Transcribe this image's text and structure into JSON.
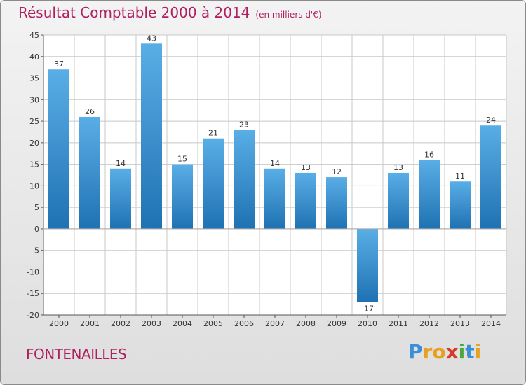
{
  "title": "Résultat Comptable 2000 à 2014",
  "subtitle": "(en milliers d'€)",
  "location": "FONTENAILLES",
  "logo_text": "Proxiti",
  "colors": {
    "title": "#b02060",
    "bar_light": "#5aaee6",
    "bar_dark": "#1f72b2",
    "grid": "#c8c8c8",
    "text": "#333333"
  },
  "chart_data": {
    "type": "bar",
    "categories": [
      "2000",
      "2001",
      "2002",
      "2003",
      "2004",
      "2005",
      "2006",
      "2007",
      "2008",
      "2009",
      "2010",
      "2011",
      "2012",
      "2013",
      "2014"
    ],
    "values": [
      37,
      26,
      14,
      43,
      15,
      21,
      23,
      14,
      13,
      12,
      -17,
      13,
      16,
      11,
      24
    ],
    "ylim": [
      -20,
      45
    ],
    "yticks": [
      -20,
      -15,
      -10,
      -5,
      0,
      5,
      10,
      15,
      20,
      25,
      30,
      35,
      40,
      45
    ],
    "grid": true
  }
}
